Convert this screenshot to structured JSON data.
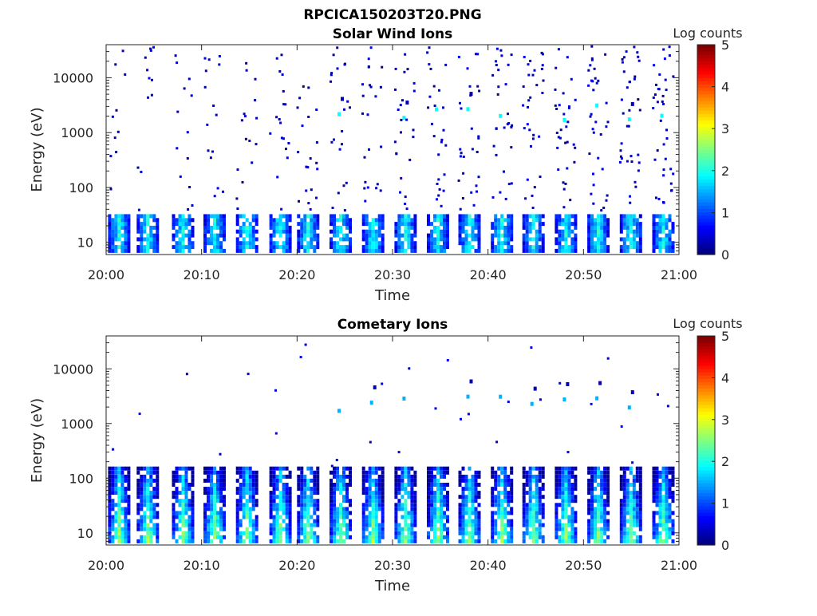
{
  "figure_title": "RPCICA150203T20.PNG",
  "chart_data": [
    {
      "type": "heatmap",
      "title": "Solar Wind Ions",
      "xlabel": "Time",
      "ylabel": "Energy (eV)",
      "x_ticks": [
        "20:00",
        "20:10",
        "20:20",
        "20:30",
        "20:40",
        "20:50",
        "21:00"
      ],
      "x_range": [
        "20:00",
        "21:00"
      ],
      "y_scale": "log",
      "y_ticks": [
        "10",
        "100",
        "1000",
        "10000"
      ],
      "y_range": [
        6,
        40000
      ],
      "colorbar": {
        "label": "Log counts",
        "ticks": [
          "0",
          "1",
          "2",
          "3",
          "4",
          "5"
        ],
        "range": [
          0,
          5
        ],
        "colormap": "jet"
      },
      "sweep_minutes": [
        1.2,
        4.2,
        7.9,
        11.2,
        14.6,
        18.1,
        21.0,
        24.4,
        27.8,
        31.2,
        34.6,
        37.9,
        41.3,
        44.6,
        48.0,
        51.4,
        54.8,
        58.2
      ],
      "features": {
        "low_energy_band_eV": [
          7,
          30
        ],
        "low_energy_log_counts": 2.2,
        "sparse_high_energy_log_counts": 0.1,
        "recurring_peak_eV": [
          1600,
          3200
        ],
        "recurring_peak_log_counts": 1.9
      }
    },
    {
      "type": "heatmap",
      "title": "Cometary Ions",
      "xlabel": "Time",
      "ylabel": "Energy (eV)",
      "x_ticks": [
        "20:00",
        "20:10",
        "20:20",
        "20:30",
        "20:40",
        "20:50",
        "21:00"
      ],
      "x_range": [
        "20:00",
        "21:00"
      ],
      "y_scale": "log",
      "y_ticks": [
        "10",
        "100",
        "1000",
        "10000"
      ],
      "y_range": [
        6,
        40000
      ],
      "colorbar": {
        "label": "Log counts",
        "ticks": [
          "0",
          "1",
          "2",
          "3",
          "4",
          "5"
        ],
        "range": [
          0,
          5
        ],
        "colormap": "jet"
      },
      "sweep_minutes": [
        1.2,
        4.2,
        7.9,
        11.2,
        14.6,
        18.1,
        21.0,
        24.4,
        27.8,
        31.2,
        34.6,
        37.9,
        41.3,
        44.6,
        48.0,
        51.4,
        54.8,
        58.2
      ],
      "features": {
        "low_energy_band_eV": [
          7,
          150
        ],
        "low_energy_peak_log_counts": 2.9,
        "sparse_high_energy_log_counts": 0.2,
        "recurring_peak_eV": [
          1600,
          3200
        ],
        "recurring_peak_log_counts": 1.5
      }
    }
  ]
}
